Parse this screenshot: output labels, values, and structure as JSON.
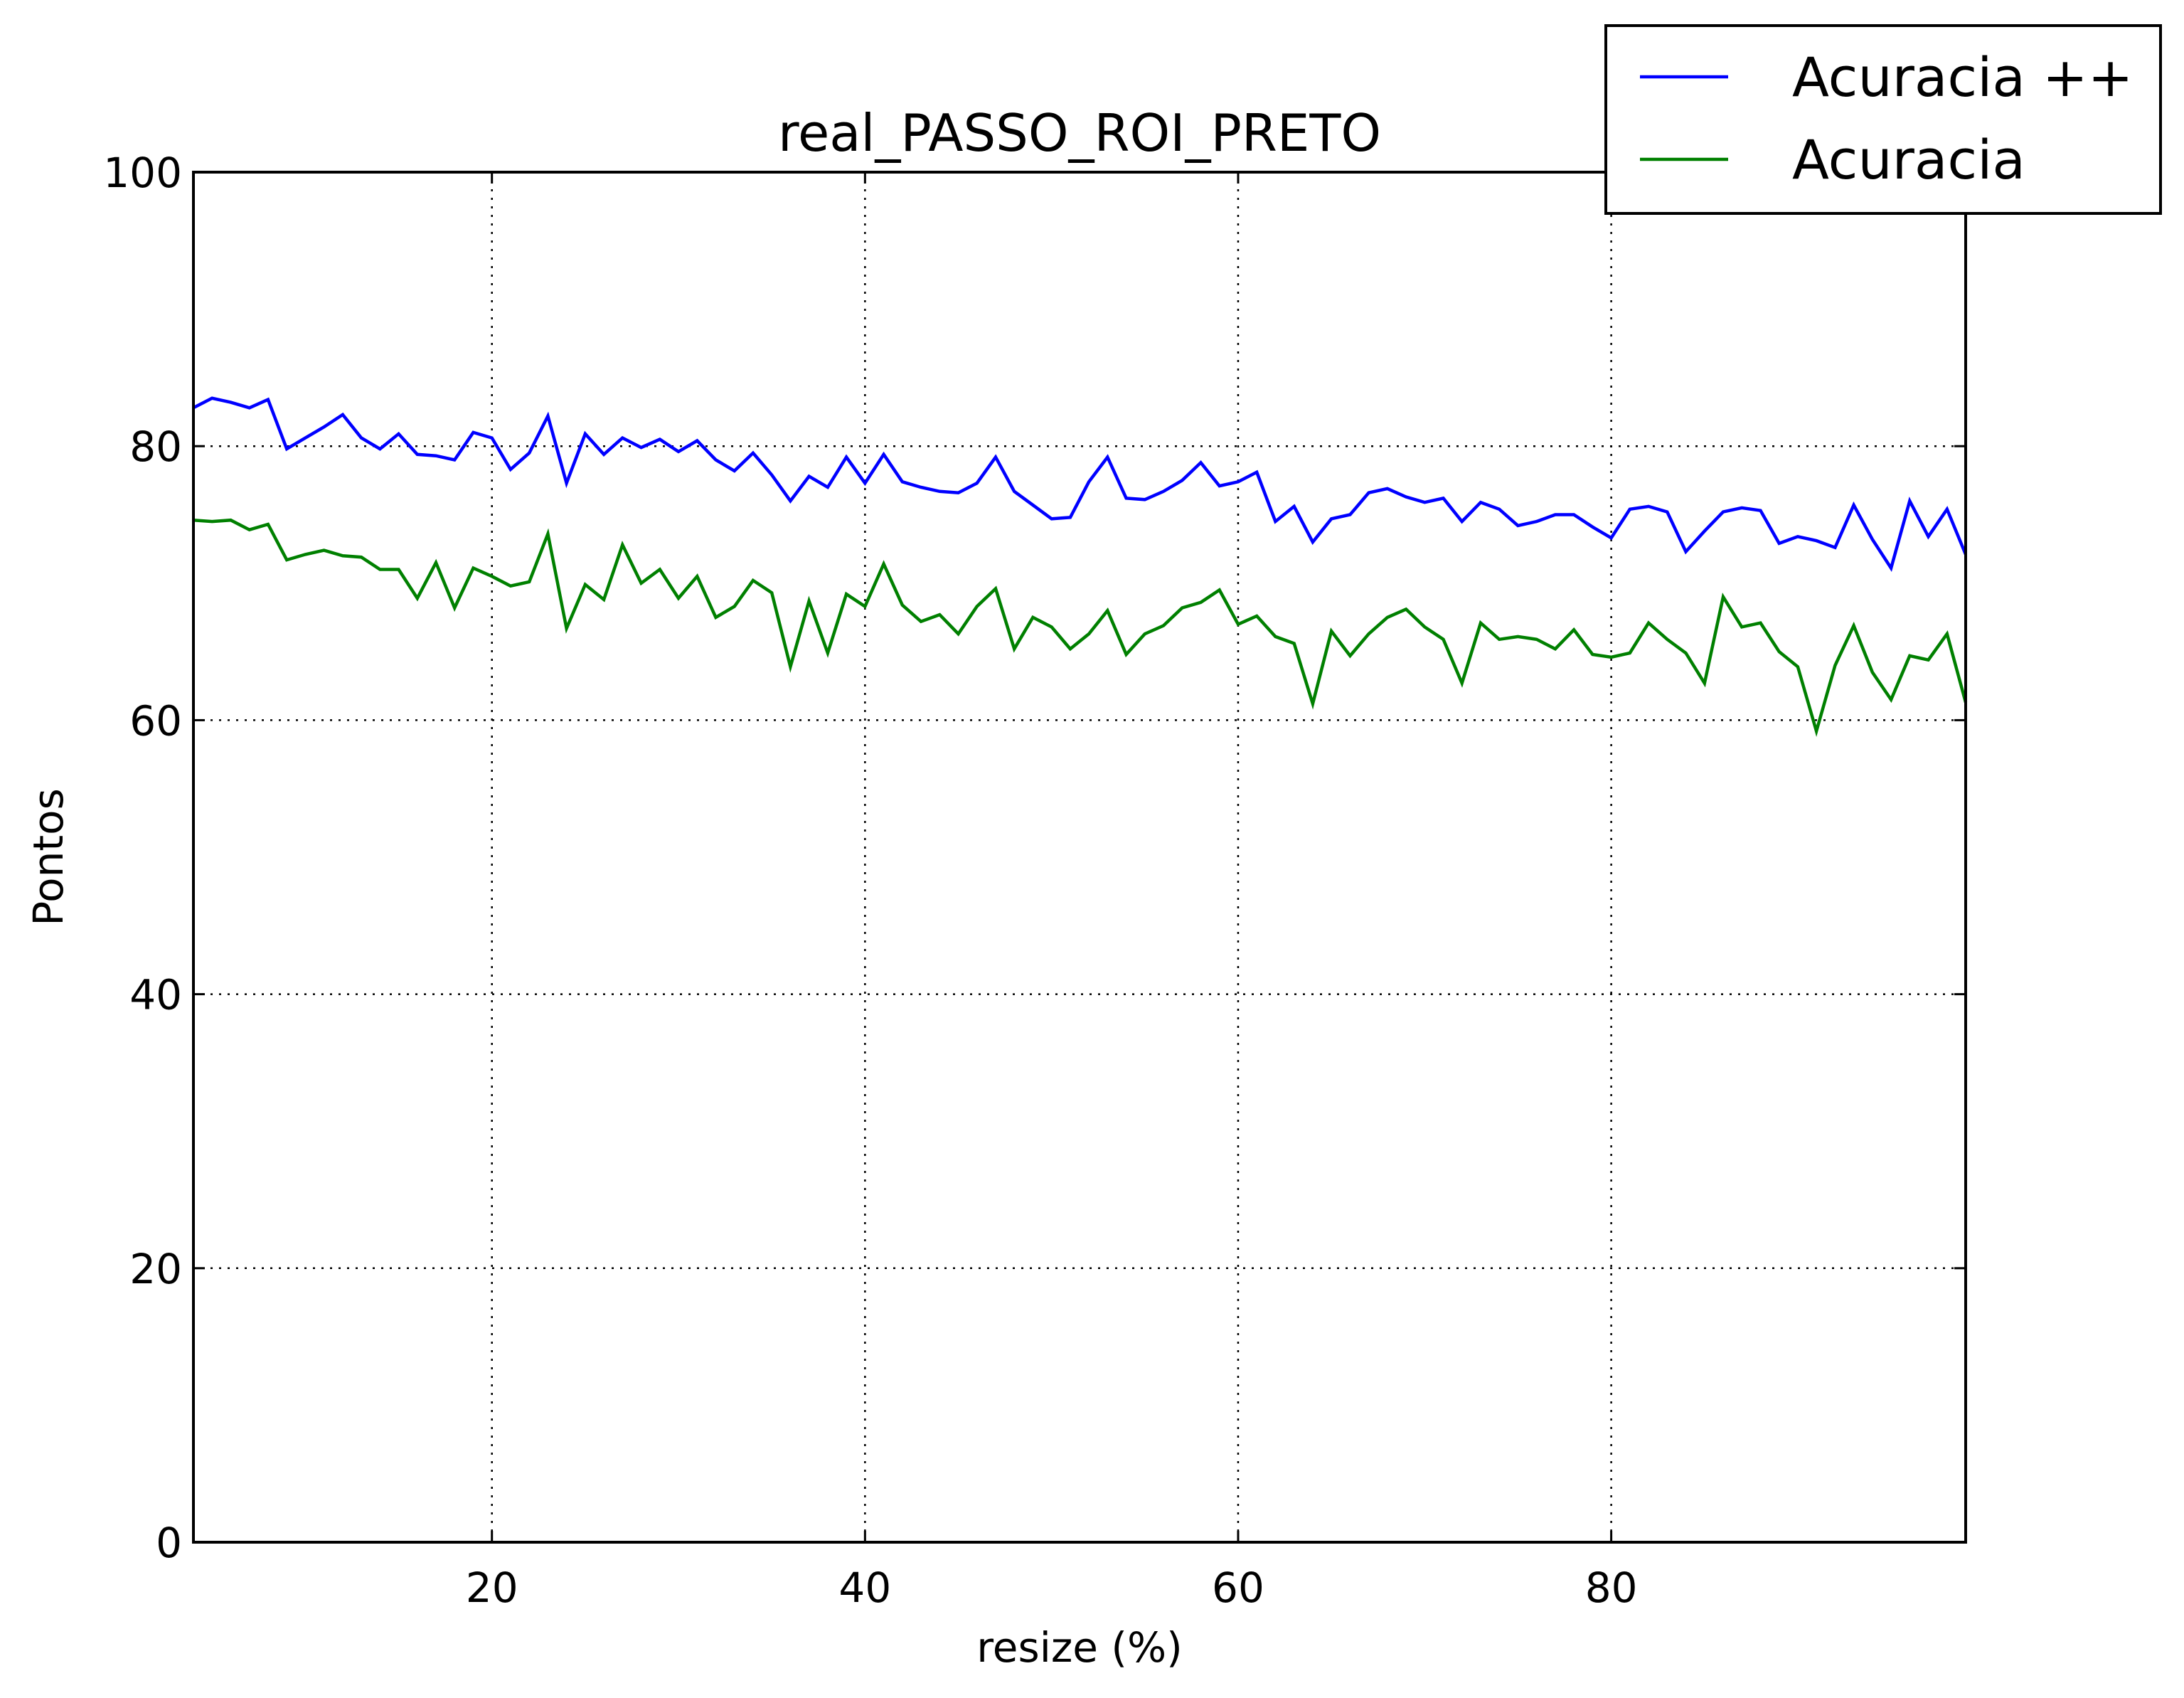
{
  "chart_data": {
    "type": "line",
    "title": "real_PASSO_ROI_PRETO",
    "xlabel": "resize (%)",
    "ylabel": "Pontos",
    "xlim": [
      4,
      99
    ],
    "ylim": [
      0,
      100
    ],
    "xticks": [
      20,
      40,
      60,
      80
    ],
    "yticks": [
      0,
      20,
      40,
      60,
      80,
      100
    ],
    "grid": true,
    "grid_style": "dotted",
    "legend_position": "top-right (overlapping plot frame)",
    "x": [
      4,
      5,
      6,
      7,
      8,
      9,
      10,
      11,
      12,
      13,
      14,
      15,
      16,
      17,
      18,
      19,
      20,
      21,
      22,
      23,
      24,
      25,
      26,
      27,
      28,
      29,
      30,
      31,
      32,
      33,
      34,
      35,
      36,
      37,
      38,
      39,
      40,
      41,
      42,
      43,
      44,
      45,
      46,
      47,
      48,
      49,
      50,
      51,
      52,
      53,
      54,
      55,
      56,
      57,
      58,
      59,
      60,
      61,
      62,
      63,
      64,
      65,
      66,
      67,
      68,
      69,
      70,
      71,
      72,
      73,
      74,
      75,
      76,
      77,
      78,
      79,
      80,
      81,
      82,
      83,
      84,
      85,
      86,
      87,
      88,
      89,
      90,
      91,
      92,
      93,
      94,
      95,
      96,
      97,
      98,
      99
    ],
    "series": [
      {
        "name": "Acuracia ++",
        "color": "#0000ff",
        "values": [
          82.8,
          83.5,
          83.2,
          82.8,
          83.4,
          79.8,
          80.6,
          81.4,
          82.3,
          80.6,
          79.8,
          80.9,
          79.4,
          79.3,
          79.0,
          81.0,
          80.6,
          78.3,
          79.5,
          82.2,
          77.3,
          80.9,
          79.4,
          80.6,
          79.9,
          80.5,
          79.6,
          80.4,
          79.0,
          78.2,
          79.5,
          77.9,
          76.0,
          77.8,
          77.0,
          79.2,
          77.3,
          79.4,
          77.4,
          77.0,
          76.7,
          76.6,
          77.3,
          79.2,
          76.7,
          75.7,
          74.7,
          74.8,
          77.4,
          79.2,
          76.2,
          76.1,
          76.7,
          77.5,
          78.8,
          77.1,
          77.4,
          78.1,
          74.5,
          75.6,
          73.0,
          74.7,
          75.0,
          76.6,
          76.9,
          76.3,
          75.9,
          76.2,
          74.5,
          75.9,
          75.4,
          74.2,
          74.5,
          75.0,
          75.0,
          74.1,
          73.3,
          75.4,
          75.6,
          75.2,
          72.3,
          73.8,
          75.2,
          75.5,
          75.3,
          72.9,
          73.4,
          73.1,
          72.6,
          75.7,
          73.2,
          71.1,
          76.0,
          73.4,
          75.4,
          72.1
        ]
      },
      {
        "name": "Acuracia",
        "color": "#008000",
        "values": [
          74.6,
          74.5,
          74.6,
          73.9,
          74.3,
          71.7,
          72.1,
          72.4,
          72.0,
          71.9,
          71.0,
          71.0,
          68.9,
          71.5,
          68.2,
          71.1,
          70.5,
          69.8,
          70.1,
          73.6,
          66.7,
          69.9,
          68.8,
          72.8,
          70.0,
          71.0,
          68.9,
          70.5,
          67.5,
          68.3,
          70.2,
          69.3,
          63.9,
          68.7,
          64.9,
          69.2,
          68.3,
          71.4,
          68.4,
          67.2,
          67.7,
          66.3,
          68.3,
          69.6,
          65.2,
          67.5,
          66.8,
          65.2,
          66.3,
          68.0,
          64.8,
          66.3,
          66.9,
          68.2,
          68.6,
          69.5,
          67.0,
          67.6,
          66.1,
          65.6,
          61.2,
          66.5,
          64.7,
          66.3,
          67.5,
          68.1,
          66.8,
          65.9,
          62.7,
          67.1,
          65.9,
          66.1,
          65.9,
          65.2,
          66.6,
          64.8,
          64.6,
          64.9,
          67.1,
          65.9,
          64.9,
          62.7,
          69.0,
          66.8,
          67.1,
          65.0,
          63.9,
          59.2,
          64.0,
          66.9,
          63.5,
          61.5,
          64.7,
          64.4,
          66.3,
          61.3
        ]
      }
    ]
  }
}
